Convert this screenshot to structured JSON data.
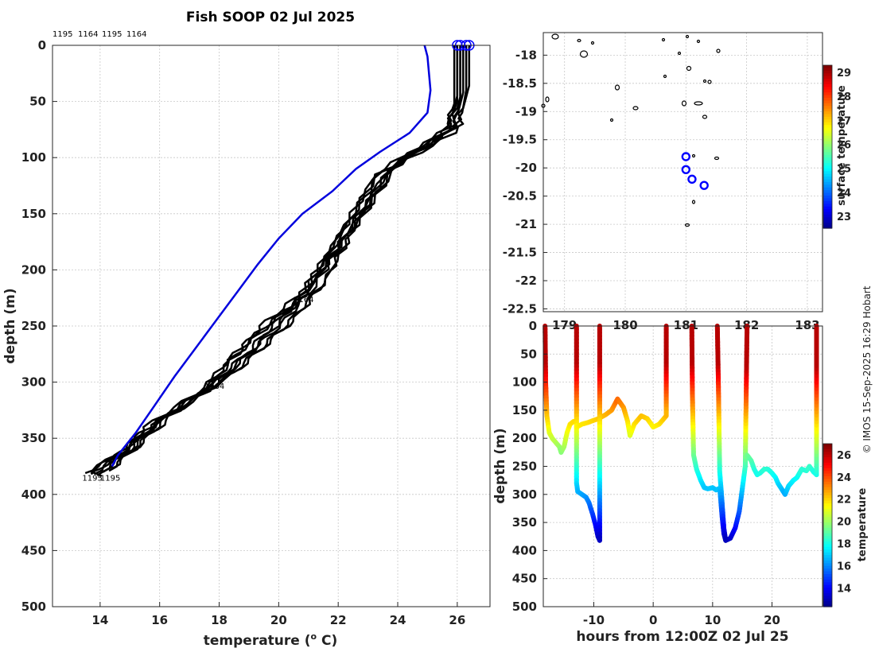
{
  "title": "Fish SOOP 02 Jul 2025",
  "credit": "© IMOS 15-Sep-2025 16:29 Hobart",
  "profile_ids": [
    "1195",
    "1164",
    "1195",
    "1164"
  ],
  "colors": {
    "profiles": "#000000",
    "mean": "#0000dd",
    "markers": "#0000ff"
  },
  "chart_data": [
    {
      "type": "line",
      "name": "profiles",
      "xlabel": "temperature (",
      "xlabel_sup": "o",
      "xlabel_tail": " C)",
      "ylabel": "depth (m)",
      "xlim": [
        12.4,
        27.1
      ],
      "ylim": [
        0,
        500
      ],
      "xticks": [
        14,
        16,
        18,
        20,
        22,
        24,
        26
      ],
      "yticks": [
        0,
        50,
        100,
        150,
        200,
        250,
        300,
        350,
        400,
        450,
        500
      ],
      "annotations": [
        {
          "text": "1164",
          "t": 20.5,
          "d": 226
        },
        {
          "text": "1164",
          "t": 17.5,
          "d": 303
        },
        {
          "text": "1195",
          "t": 13.4,
          "d": 385
        },
        {
          "text": "1195",
          "t": 14.0,
          "d": 385
        }
      ],
      "series": [
        {
          "name": "p1",
          "points": [
            [
              26.0,
              0
            ],
            [
              26.0,
              45
            ],
            [
              25.7,
              75
            ],
            [
              23.5,
              110
            ],
            [
              22.0,
              170
            ],
            [
              20.8,
              220
            ],
            [
              19.4,
              250
            ],
            [
              18.6,
              275
            ],
            [
              17.5,
              305
            ],
            [
              15.5,
              340
            ],
            [
              14.8,
              362
            ],
            [
              13.6,
              380
            ],
            [
              14.0,
              384
            ]
          ]
        },
        {
          "name": "p2",
          "points": [
            [
              26.1,
              0
            ],
            [
              26.1,
              48
            ],
            [
              25.9,
              78
            ],
            [
              23.6,
              113
            ],
            [
              22.1,
              175
            ],
            [
              20.9,
              222
            ],
            [
              19.7,
              252
            ],
            [
              18.9,
              275
            ],
            [
              17.8,
              300
            ],
            [
              15.8,
              338
            ],
            [
              14.9,
              360
            ],
            [
              13.8,
              382
            ]
          ]
        },
        {
          "name": "p3",
          "points": [
            [
              26.2,
              0
            ],
            [
              26.2,
              42
            ],
            [
              25.9,
              73
            ],
            [
              23.8,
              108
            ],
            [
              22.3,
              168
            ],
            [
              21.2,
              215
            ],
            [
              20.1,
              248
            ],
            [
              19.1,
              272
            ],
            [
              18.0,
              298
            ],
            [
              16.0,
              334
            ],
            [
              15.1,
              358
            ],
            [
              14.1,
              380
            ]
          ]
        },
        {
          "name": "p4",
          "points": [
            [
              26.0,
              0
            ],
            [
              26.0,
              50
            ],
            [
              25.6,
              80
            ],
            [
              23.3,
              115
            ],
            [
              21.9,
              178
            ],
            [
              20.7,
              225
            ],
            [
              19.5,
              253
            ],
            [
              18.4,
              280
            ],
            [
              17.6,
              308
            ],
            [
              15.6,
              343
            ],
            [
              14.7,
              363
            ],
            [
              13.5,
              381
            ]
          ]
        },
        {
          "name": "p5",
          "points": [
            [
              26.3,
              0
            ],
            [
              26.3,
              40
            ],
            [
              26.1,
              70
            ],
            [
              24.0,
              105
            ],
            [
              22.5,
              165
            ],
            [
              21.5,
              212
            ],
            [
              20.4,
              245
            ],
            [
              19.4,
              270
            ],
            [
              18.3,
              295
            ],
            [
              16.2,
              332
            ],
            [
              15.3,
              356
            ],
            [
              14.3,
              379
            ]
          ]
        },
        {
          "name": "p6",
          "points": [
            [
              26.1,
              0
            ],
            [
              26.1,
              46
            ],
            [
              25.8,
              76
            ],
            [
              23.7,
              112
            ],
            [
              22.2,
              172
            ],
            [
              21.0,
              218
            ],
            [
              19.9,
              250
            ],
            [
              19.0,
              274
            ],
            [
              17.9,
              302
            ],
            [
              15.9,
              336
            ],
            [
              15.0,
              361
            ],
            [
              13.9,
              383
            ]
          ]
        },
        {
          "name": "p7",
          "points": [
            [
              26.4,
              0
            ],
            [
              26.4,
              36
            ],
            [
              26.1,
              66
            ],
            [
              24.1,
              102
            ],
            [
              22.6,
              160
            ],
            [
              21.6,
              208
            ],
            [
              20.6,
              242
            ],
            [
              19.6,
              266
            ],
            [
              18.5,
              292
            ],
            [
              16.4,
              330
            ],
            [
              15.4,
              354
            ],
            [
              14.4,
              377
            ]
          ]
        },
        {
          "name": "p8",
          "points": [
            [
              25.9,
              0
            ],
            [
              25.9,
              52
            ],
            [
              25.5,
              82
            ],
            [
              23.2,
              118
            ],
            [
              21.8,
              180
            ],
            [
              20.6,
              228
            ],
            [
              19.3,
              256
            ],
            [
              18.2,
              283
            ],
            [
              17.4,
              310
            ],
            [
              15.4,
              345
            ],
            [
              14.6,
              365
            ],
            [
              13.7,
              382
            ]
          ]
        }
      ],
      "mean_profile": [
        [
          24.9,
          0
        ],
        [
          25.0,
          10
        ],
        [
          25.1,
          40
        ],
        [
          25.0,
          60
        ],
        [
          24.4,
          78
        ],
        [
          23.4,
          95
        ],
        [
          22.6,
          110
        ],
        [
          21.8,
          130
        ],
        [
          20.8,
          150
        ],
        [
          20.0,
          172
        ],
        [
          19.3,
          195
        ],
        [
          18.6,
          220
        ],
        [
          17.9,
          245
        ],
        [
          17.2,
          270
        ],
        [
          16.5,
          295
        ],
        [
          15.8,
          322
        ],
        [
          15.2,
          345
        ],
        [
          14.6,
          365
        ],
        [
          14.4,
          375
        ]
      ],
      "surface_markers": [
        [
          26.0,
          0
        ],
        [
          26.1,
          0
        ],
        [
          26.3,
          0
        ],
        [
          26.4,
          0
        ]
      ]
    },
    {
      "type": "scatter",
      "name": "map",
      "xlim": [
        178.65,
        183.25
      ],
      "ylim": [
        -22.55,
        -17.6
      ],
      "xticks": [
        179,
        180,
        181,
        182,
        183
      ],
      "xtick_labels": [
        "179",
        "180",
        "181",
        "182",
        "183"
      ],
      "yticks": [
        -18,
        -18.5,
        -19,
        -19.5,
        -20,
        -20.5,
        -21,
        -21.5,
        -22,
        -22.5
      ],
      "points": [
        [
          181.0,
          -19.8
        ],
        [
          181.0,
          -20.03
        ],
        [
          181.1,
          -20.2
        ],
        [
          181.3,
          -20.31
        ]
      ],
      "colorbar": {
        "label": "surface temperature",
        "ticks": [
          23,
          24,
          25,
          26,
          27,
          28,
          29
        ],
        "range": [
          22.5,
          29.3
        ]
      }
    },
    {
      "type": "scatter",
      "name": "time-depth",
      "xlabel": "hours from 12:00Z 02 Jul 25",
      "ylabel": "depth (m)",
      "xlim": [
        -18.5,
        28.5
      ],
      "ylim": [
        0,
        500
      ],
      "xticks": [
        -10,
        0,
        10,
        20
      ],
      "yticks": [
        0,
        50,
        100,
        150,
        200,
        250,
        300,
        350,
        400,
        450,
        500
      ],
      "colorbar": {
        "label": "temperature",
        "ticks": [
          14,
          16,
          18,
          20,
          22,
          24,
          26
        ],
        "range": [
          12.3,
          27.0
        ]
      },
      "profiles": [
        {
          "time": -18,
          "max_depth": 225
        },
        {
          "time": -13,
          "max_depth": 305
        },
        {
          "time": -9,
          "max_depth": 382
        },
        {
          "time": 2.2,
          "max_depth": 160
        },
        {
          "time": 6.5,
          "max_depth": 290
        },
        {
          "time": 12.2,
          "max_depth": 382
        },
        {
          "time": 15.8,
          "max_depth": 255
        },
        {
          "time": 27.5,
          "max_depth": 265
        }
      ],
      "traces": [
        [
          [
            -18.2,
            0
          ],
          [
            -18.1,
            100
          ],
          [
            -17.9,
            160
          ],
          [
            -17.5,
            190
          ],
          [
            -17.0,
            200
          ],
          [
            -16.6,
            205
          ],
          [
            -16.2,
            210
          ],
          [
            -15.8,
            215
          ],
          [
            -15.5,
            225
          ],
          [
            -15.0,
            215
          ],
          [
            -14.5,
            190
          ],
          [
            -14,
            175
          ],
          [
            -13.4,
            170
          ]
        ],
        [
          [
            -12.9,
            0
          ],
          [
            -12.9,
            120
          ],
          [
            -12.9,
            200
          ],
          [
            -12.9,
            280
          ],
          [
            -12.7,
            295
          ],
          [
            -12,
            300
          ],
          [
            -11.3,
            305
          ],
          [
            -10.8,
            315
          ],
          [
            -10.2,
            335
          ],
          [
            -9.7,
            355
          ],
          [
            -9.3,
            375
          ],
          [
            -9.0,
            382
          ]
        ],
        [
          [
            -12.9,
            180
          ],
          [
            -12,
            175
          ],
          [
            -11,
            172
          ],
          [
            -10,
            168
          ],
          [
            -9.2,
            165
          ],
          [
            -8,
            158
          ],
          [
            -7,
            150
          ],
          [
            -6,
            130
          ],
          [
            -5,
            145
          ],
          [
            -4.3,
            170
          ],
          [
            -3.9,
            195
          ],
          [
            -3.2,
            175
          ],
          [
            -2,
            160
          ],
          [
            -1,
            165
          ],
          [
            0,
            180
          ],
          [
            1,
            175
          ],
          [
            2.2,
            160
          ]
        ],
        [
          [
            -9.0,
            0
          ],
          [
            -9.0,
            120
          ],
          [
            -9.0,
            250
          ],
          [
            -9.0,
            382
          ]
        ],
        [
          [
            2.2,
            0
          ],
          [
            2.2,
            160
          ]
        ],
        [
          [
            6.5,
            0
          ],
          [
            6.6,
            120
          ],
          [
            6.8,
            230
          ],
          [
            7.3,
            255
          ],
          [
            8.0,
            275
          ],
          [
            8.6,
            288
          ],
          [
            9.2,
            290
          ],
          [
            10,
            288
          ],
          [
            10.6,
            292
          ],
          [
            11.2,
            289
          ],
          [
            11.6,
            340
          ],
          [
            11.9,
            370
          ],
          [
            12.2,
            382
          ]
        ],
        [
          [
            10.8,
            0
          ],
          [
            11.0,
            120
          ],
          [
            11.2,
            260
          ],
          [
            11.5,
            300
          ],
          [
            11.9,
            360
          ],
          [
            12.2,
            382
          ]
        ],
        [
          [
            12.2,
            382
          ],
          [
            13,
            378
          ],
          [
            13.8,
            360
          ],
          [
            14.5,
            330
          ],
          [
            15.0,
            290
          ],
          [
            15.5,
            250
          ],
          [
            15.8,
            0
          ]
        ],
        [
          [
            15.8,
            230
          ],
          [
            16.5,
            240
          ],
          [
            17,
            255
          ],
          [
            17.5,
            265
          ],
          [
            18,
            262
          ],
          [
            18.7,
            255
          ],
          [
            19.3,
            255
          ],
          [
            20,
            262
          ],
          [
            20.6,
            270
          ],
          [
            21,
            280
          ],
          [
            21.6,
            290
          ],
          [
            22.2,
            300
          ],
          [
            22.8,
            285
          ],
          [
            23.6,
            275
          ],
          [
            24.2,
            270
          ],
          [
            25,
            255
          ],
          [
            25.8,
            258
          ],
          [
            26.3,
            250
          ],
          [
            27.0,
            260
          ],
          [
            27.5,
            265
          ],
          [
            27.5,
            0
          ]
        ]
      ]
    }
  ]
}
